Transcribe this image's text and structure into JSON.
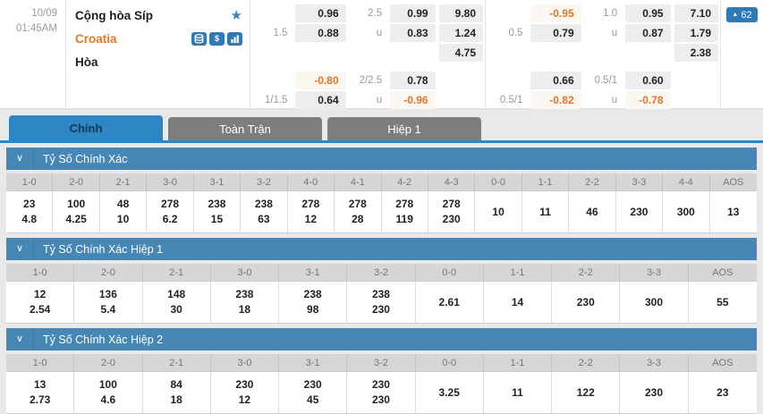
{
  "match": {
    "date": "10/09",
    "time": "01:45AM",
    "home_team": "Cộng hòa Síp",
    "away_team": "Croatia",
    "draw_label": "Hòa",
    "favorite_icon": "star-icon",
    "team_icons": [
      "database-icon",
      "dollar-icon",
      "bar-chart-icon"
    ],
    "market_badge": {
      "icon": "up-triangle-icon",
      "count": "62"
    }
  },
  "colors": {
    "accent_blue": "#2e86c4",
    "section_bar_blue": "#4687b5",
    "icon_blue": "#3179b5",
    "negative_orange": "#e0762c",
    "away_team_orange": "#e87722",
    "inactive_tab_gray": "#7d7d7d"
  },
  "odds_grid": {
    "columns_per_group": [
      "line-label",
      "odds",
      "line-label",
      "odds",
      "odds"
    ],
    "full_time_group": {
      "rows": [
        [
          "",
          "0.96",
          "2.5",
          "0.99",
          "9.80"
        ],
        [
          "1.5",
          "0.88",
          "u",
          "0.83",
          "1.24"
        ],
        [
          "",
          "",
          "",
          "",
          "4.75"
        ],
        [
          "",
          "-0.80",
          "2/2.5",
          "0.78",
          ""
        ],
        [
          "1/1.5",
          "0.64",
          "u",
          "-0.96",
          ""
        ]
      ]
    },
    "half_time_group": {
      "rows": [
        [
          "",
          "-0.95",
          "1.0",
          "0.95",
          "7.10"
        ],
        [
          "0.5",
          "0.79",
          "u",
          "0.87",
          "1.79"
        ],
        [
          "",
          "",
          "",
          "",
          "2.38"
        ],
        [
          "",
          "0.66",
          "0.5/1",
          "0.60",
          ""
        ],
        [
          "0.5/1",
          "-0.82",
          "u",
          "-0.78",
          ""
        ]
      ]
    }
  },
  "tabs": [
    {
      "label": "Chính",
      "active": true
    },
    {
      "label": "Toàn Trận",
      "active": false
    },
    {
      "label": "Hiệp 1",
      "active": false
    }
  ],
  "sections": [
    {
      "title": "Tỷ Số Chính Xác",
      "columns": [
        {
          "h": "1-0",
          "v": [
            "23",
            "4.8"
          ]
        },
        {
          "h": "2-0",
          "v": [
            "100",
            "4.25"
          ]
        },
        {
          "h": "2-1",
          "v": [
            "48",
            "10"
          ]
        },
        {
          "h": "3-0",
          "v": [
            "278",
            "6.2"
          ]
        },
        {
          "h": "3-1",
          "v": [
            "238",
            "15"
          ]
        },
        {
          "h": "3-2",
          "v": [
            "238",
            "63"
          ]
        },
        {
          "h": "4-0",
          "v": [
            "278",
            "12"
          ]
        },
        {
          "h": "4-1",
          "v": [
            "278",
            "28"
          ]
        },
        {
          "h": "4-2",
          "v": [
            "278",
            "119"
          ]
        },
        {
          "h": "4-3",
          "v": [
            "278",
            "230"
          ]
        },
        {
          "h": "0-0",
          "v": [
            "10"
          ]
        },
        {
          "h": "1-1",
          "v": [
            "11"
          ]
        },
        {
          "h": "2-2",
          "v": [
            "46"
          ]
        },
        {
          "h": "3-3",
          "v": [
            "230"
          ]
        },
        {
          "h": "4-4",
          "v": [
            "300"
          ]
        },
        {
          "h": "AOS",
          "v": [
            "13"
          ]
        }
      ]
    },
    {
      "title": "Tỷ Số Chính Xác Hiệp 1",
      "columns": [
        {
          "h": "1-0",
          "v": [
            "12",
            "2.54"
          ]
        },
        {
          "h": "2-0",
          "v": [
            "136",
            "5.4"
          ]
        },
        {
          "h": "2-1",
          "v": [
            "148",
            "30"
          ]
        },
        {
          "h": "3-0",
          "v": [
            "238",
            "18"
          ]
        },
        {
          "h": "3-1",
          "v": [
            "238",
            "98"
          ]
        },
        {
          "h": "3-2",
          "v": [
            "238",
            "230"
          ]
        },
        {
          "h": "0-0",
          "v": [
            "2.61"
          ]
        },
        {
          "h": "1-1",
          "v": [
            "14"
          ]
        },
        {
          "h": "2-2",
          "v": [
            "230"
          ]
        },
        {
          "h": "3-3",
          "v": [
            "300"
          ]
        },
        {
          "h": "AOS",
          "v": [
            "55"
          ]
        }
      ]
    },
    {
      "title": "Tỷ Số Chính Xác Hiệp 2",
      "columns": [
        {
          "h": "1-0",
          "v": [
            "13",
            "2.73"
          ]
        },
        {
          "h": "2-0",
          "v": [
            "100",
            "4.6"
          ]
        },
        {
          "h": "2-1",
          "v": [
            "84",
            "18"
          ]
        },
        {
          "h": "3-0",
          "v": [
            "230",
            "12"
          ]
        },
        {
          "h": "3-1",
          "v": [
            "230",
            "45"
          ]
        },
        {
          "h": "3-2",
          "v": [
            "230",
            "230"
          ]
        },
        {
          "h": "0-0",
          "v": [
            "3.25"
          ]
        },
        {
          "h": "1-1",
          "v": [
            "11"
          ]
        },
        {
          "h": "2-2",
          "v": [
            "122"
          ]
        },
        {
          "h": "3-3",
          "v": [
            "230"
          ]
        },
        {
          "h": "AOS",
          "v": [
            "23"
          ]
        }
      ]
    }
  ]
}
